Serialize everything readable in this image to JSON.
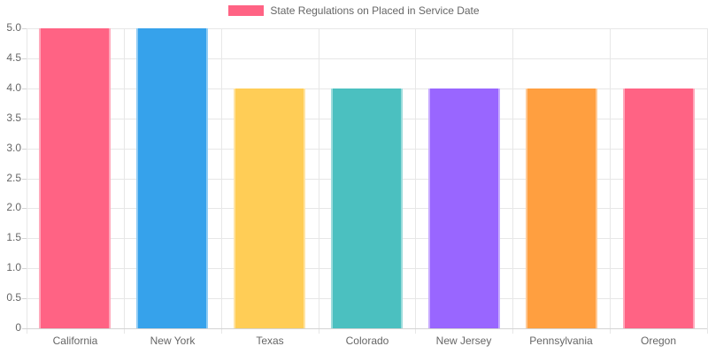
{
  "legend": {
    "label": "State Regulations on Placed in Service Date",
    "swatch_color": "#FF6384"
  },
  "chart_data": {
    "type": "bar",
    "title": "State Regulations on Placed in Service Date",
    "categories": [
      "California",
      "New York",
      "Texas",
      "Colorado",
      "New Jersey",
      "Pennsylvania",
      "Oregon"
    ],
    "values": [
      5,
      5,
      4,
      4,
      4,
      4,
      4
    ],
    "bar_colors": [
      "#FF6384",
      "#36A2EB",
      "#FFCD56",
      "#4BC0C0",
      "#9966FF",
      "#FF9F40",
      "#FF6384"
    ],
    "xlabel": "",
    "ylabel": "",
    "ylim": [
      0,
      5
    ],
    "ytick_step": 0.5,
    "ytick_labels": [
      "0",
      "0.5",
      "1.0",
      "1.5",
      "2.0",
      "2.5",
      "3.0",
      "3.5",
      "4.0",
      "4.5",
      "5.0"
    ],
    "grid": true,
    "legend_position": "top",
    "colors": {
      "grid": "#E7E7E7",
      "zero_line": "#D4D4D4",
      "tick_text": "#666666",
      "background": "#FFFFFF"
    }
  }
}
